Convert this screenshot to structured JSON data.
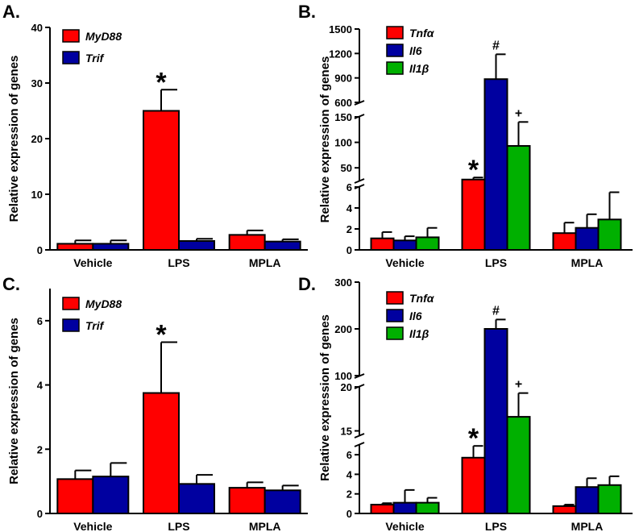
{
  "colors": {
    "red": "#ff0000",
    "blue": "#0000a0",
    "green": "#00b000"
  },
  "chart_data": [
    {
      "panel": "A.",
      "type": "bar",
      "ylabel": "Relative expression of genes",
      "categories": [
        "Vehicle",
        "LPS",
        "MPLA"
      ],
      "ylim": [
        0,
        40
      ],
      "yticks": [
        "0",
        "10",
        "20",
        "30",
        "40"
      ],
      "series": [
        {
          "name": "MyD88",
          "color": "#ff0000",
          "values": [
            1.1,
            25.0,
            2.7
          ],
          "errors": [
            0.6,
            3.8,
            0.8
          ]
        },
        {
          "name": "Trif",
          "color": "#0000a0",
          "values": [
            1.1,
            1.6,
            1.5
          ],
          "errors": [
            0.6,
            0.4,
            0.4
          ]
        }
      ],
      "annotations": [
        {
          "text": "*",
          "series": 0,
          "category": 1
        }
      ]
    },
    {
      "panel": "B.",
      "type": "bar",
      "broken_axis": true,
      "ylabel": "Relative expression of genes",
      "categories": [
        "Vehicle",
        "LPS",
        "MPLA"
      ],
      "segments": [
        {
          "range": [
            0,
            6
          ],
          "ticks": [
            "0",
            "2",
            "4",
            "6"
          ]
        },
        {
          "range": [
            25,
            150
          ],
          "ticks": [
            "50",
            "100",
            "150"
          ]
        },
        {
          "range": [
            600,
            1500
          ],
          "ticks": [
            "600",
            "900",
            "1200",
            "1500"
          ]
        }
      ],
      "series": [
        {
          "name": "Tnfα",
          "color": "#ff0000",
          "values": [
            1.1,
            27,
            1.6
          ],
          "errors": [
            0.6,
            4,
            1.0
          ]
        },
        {
          "name": "Il6",
          "color": "#0000a0",
          "values": [
            0.9,
            885,
            2.1
          ],
          "errors": [
            0.4,
            305,
            1.3
          ]
        },
        {
          "name": "Il1β",
          "color": "#00b000",
          "values": [
            1.2,
            93,
            2.9
          ],
          "errors": [
            0.9,
            47,
            2.6
          ]
        }
      ],
      "annotations": [
        {
          "text": "*",
          "series": 0,
          "category": 1
        },
        {
          "text": "#",
          "series": 1,
          "category": 1
        },
        {
          "text": "+",
          "series": 2,
          "category": 1
        }
      ]
    },
    {
      "panel": "C.",
      "type": "bar",
      "ylabel": "Relative expression of genes",
      "categories": [
        "Vehicle",
        "LPS",
        "MPLA"
      ],
      "ylim": [
        0,
        7
      ],
      "yticks": [
        "0",
        "2",
        "4",
        "6"
      ],
      "series": [
        {
          "name": "MyD88",
          "color": "#ff0000",
          "values": [
            1.07,
            3.75,
            0.8
          ],
          "errors": [
            0.27,
            1.58,
            0.17
          ]
        },
        {
          "name": "Trif",
          "color": "#0000a0",
          "values": [
            1.15,
            0.92,
            0.72
          ],
          "errors": [
            0.42,
            0.28,
            0.15
          ]
        }
      ],
      "annotations": [
        {
          "text": "*",
          "series": 0,
          "category": 1
        }
      ]
    },
    {
      "panel": "D.",
      "type": "bar",
      "broken_axis": true,
      "ylabel": "Relative expression of genes",
      "categories": [
        "Vehicle",
        "LPS",
        "MPLA"
      ],
      "segments": [
        {
          "range": [
            0,
            7
          ],
          "ticks": [
            "0",
            "2",
            "4",
            "6"
          ]
        },
        {
          "range": [
            14.5,
            20
          ],
          "ticks": [
            "15",
            "20"
          ]
        },
        {
          "range": [
            100,
            300
          ],
          "ticks": [
            "100",
            "200",
            "300"
          ]
        }
      ],
      "series": [
        {
          "name": "Tnfα",
          "color": "#ff0000",
          "values": [
            0.9,
            5.7,
            0.75
          ],
          "errors": [
            0.15,
            1.2,
            0.15
          ]
        },
        {
          "name": "Il6",
          "color": "#0000a0",
          "values": [
            1.1,
            200,
            2.7
          ],
          "errors": [
            1.3,
            20,
            0.9
          ]
        },
        {
          "name": "Il1β",
          "color": "#00b000",
          "values": [
            1.1,
            16.6,
            2.9
          ],
          "errors": [
            0.5,
            2.7,
            0.9
          ]
        }
      ],
      "annotations": [
        {
          "text": "*",
          "series": 0,
          "category": 1
        },
        {
          "text": "#",
          "series": 1,
          "category": 1
        },
        {
          "text": "+",
          "series": 2,
          "category": 1
        }
      ]
    }
  ]
}
